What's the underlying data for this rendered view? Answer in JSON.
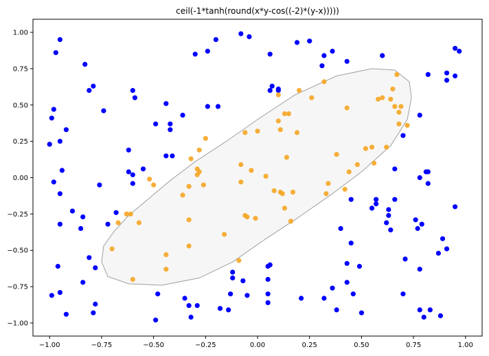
{
  "chart_data": {
    "type": "scatter",
    "title": "ceil(-1*tanh(round(x*y-cos((-2)*(y-x)))))",
    "xlabel": "",
    "ylabel": "",
    "xlim": [
      -1.08,
      1.08
    ],
    "ylim": [
      -1.09,
      1.09
    ],
    "x_ticks": [
      -1.0,
      -0.75,
      -0.5,
      -0.25,
      0.0,
      0.25,
      0.5,
      0.75,
      1.0
    ],
    "x_tick_labels": [
      "−1.00",
      "−0.75",
      "−0.50",
      "−0.25",
      "0.00",
      "0.25",
      "0.50",
      "0.75",
      "1.00"
    ],
    "y_ticks": [
      1.0,
      0.75,
      0.5,
      0.25,
      0.0,
      -0.25,
      -0.5,
      -0.75,
      -1.0
    ],
    "y_tick_labels": [
      "1.00",
      "0.75",
      "0.50",
      "0.25",
      "0.00",
      "−0.25",
      "−0.50",
      "−0.75",
      "−1.00"
    ],
    "grid": false,
    "colors": {
      "class_a": "#0000ff",
      "class_b": "#f5a623",
      "region_fill": "#d3d3d3",
      "region_stroke": "#a0a0a0"
    },
    "region": [
      [
        -0.74,
        -0.47
      ],
      [
        -0.69,
        -0.37
      ],
      [
        -0.62,
        -0.26
      ],
      [
        -0.52,
        -0.14
      ],
      [
        -0.42,
        -0.02
      ],
      [
        -0.3,
        0.11
      ],
      [
        -0.15,
        0.25
      ],
      [
        0.0,
        0.4
      ],
      [
        0.18,
        0.57
      ],
      [
        0.38,
        0.7
      ],
      [
        0.55,
        0.75
      ],
      [
        0.66,
        0.74
      ],
      [
        0.73,
        0.66
      ],
      [
        0.74,
        0.55
      ],
      [
        0.72,
        0.4
      ],
      [
        0.64,
        0.22
      ],
      [
        0.5,
        0.04
      ],
      [
        0.36,
        -0.11
      ],
      [
        0.2,
        -0.27
      ],
      [
        0.03,
        -0.43
      ],
      [
        -0.12,
        -0.58
      ],
      [
        -0.28,
        -0.69
      ],
      [
        -0.46,
        -0.74
      ],
      [
        -0.62,
        -0.73
      ],
      [
        -0.72,
        -0.68
      ],
      [
        -0.75,
        -0.58
      ]
    ],
    "series": [
      {
        "values": [
          [
            -0.95,
            0.95
          ],
          [
            -0.97,
            0.86
          ],
          [
            -0.83,
            0.78
          ],
          [
            -0.81,
            0.6
          ],
          [
            -0.79,
            0.63
          ],
          [
            -0.99,
            0.41
          ],
          [
            -0.98,
            0.47
          ],
          [
            -0.74,
            0.46
          ],
          [
            -0.95,
            0.25
          ],
          [
            -0.92,
            0.33
          ],
          [
            -1.0,
            0.23
          ],
          [
            -0.94,
            0.05
          ],
          [
            -0.98,
            -0.03
          ],
          [
            -0.95,
            -0.11
          ],
          [
            -0.76,
            -0.05
          ],
          [
            -0.89,
            -0.23
          ],
          [
            -0.84,
            -0.27
          ],
          [
            -0.95,
            -0.32
          ],
          [
            -0.85,
            -0.35
          ],
          [
            -0.81,
            -0.55
          ],
          [
            -0.96,
            -0.61
          ],
          [
            -0.84,
            -0.72
          ],
          [
            -0.78,
            -0.62
          ],
          [
            -0.95,
            -0.79
          ],
          [
            -0.99,
            -0.81
          ],
          [
            -0.78,
            -0.87
          ],
          [
            -0.92,
            -0.94
          ],
          [
            -0.79,
            -0.93
          ],
          [
            -0.72,
            -0.32
          ],
          [
            -0.68,
            -0.24
          ],
          [
            -0.6,
            0.6
          ],
          [
            -0.59,
            0.55
          ],
          [
            -0.44,
            0.51
          ],
          [
            -0.49,
            0.37
          ],
          [
            -0.42,
            0.37
          ],
          [
            -0.36,
            0.43
          ],
          [
            -0.42,
            0.33
          ],
          [
            -0.41,
            0.15
          ],
          [
            -0.44,
            0.15
          ],
          [
            -0.62,
            0.19
          ],
          [
            -0.62,
            0.04
          ],
          [
            -0.55,
            0.06
          ],
          [
            -0.6,
            0.02
          ],
          [
            -0.6,
            -0.04
          ],
          [
            -0.3,
            0.85
          ],
          [
            -0.24,
            0.87
          ],
          [
            -0.2,
            0.95
          ],
          [
            -0.24,
            0.49
          ],
          [
            -0.19,
            0.49
          ],
          [
            -0.08,
            0.99
          ],
          [
            -0.04,
            0.97
          ],
          [
            0.06,
            0.85
          ],
          [
            0.07,
            0.63
          ],
          [
            0.06,
            0.6
          ],
          [
            0.1,
            0.61
          ],
          [
            0.1,
            0.6
          ],
          [
            0.19,
            0.93
          ],
          [
            0.25,
            0.94
          ],
          [
            0.31,
            0.77
          ],
          [
            0.32,
            0.84
          ],
          [
            0.36,
            0.87
          ],
          [
            0.43,
            0.8
          ],
          [
            0.6,
            0.84
          ],
          [
            0.82,
            0.71
          ],
          [
            0.91,
            0.72
          ],
          [
            0.91,
            0.67
          ],
          [
            0.95,
            0.7
          ],
          [
            0.95,
            0.89
          ],
          [
            0.97,
            0.87
          ],
          [
            0.78,
            0.43
          ],
          [
            0.7,
            0.29
          ],
          [
            0.81,
            0.04
          ],
          [
            0.82,
            0.04
          ],
          [
            0.82,
            -0.04
          ],
          [
            0.78,
            0.0
          ],
          [
            0.66,
            0.06
          ],
          [
            0.57,
            -0.15
          ],
          [
            0.57,
            -0.18
          ],
          [
            0.55,
            -0.21
          ],
          [
            0.63,
            -0.22
          ],
          [
            0.63,
            -0.26
          ],
          [
            0.62,
            -0.31
          ],
          [
            0.64,
            -0.36
          ],
          [
            0.66,
            -0.15
          ],
          [
            0.76,
            -0.29
          ],
          [
            0.79,
            -0.32
          ],
          [
            0.77,
            -0.35
          ],
          [
            0.89,
            -0.42
          ],
          [
            0.91,
            -0.49
          ],
          [
            0.87,
            -0.52
          ],
          [
            0.95,
            -0.2
          ],
          [
            0.71,
            -0.56
          ],
          [
            0.78,
            -0.63
          ],
          [
            0.7,
            -0.8
          ],
          [
            0.78,
            -0.91
          ],
          [
            0.8,
            -0.96
          ],
          [
            0.83,
            -0.91
          ],
          [
            0.88,
            -0.95
          ],
          [
            0.45,
            -0.15
          ],
          [
            0.4,
            -0.35
          ],
          [
            0.45,
            -0.45
          ],
          [
            0.43,
            -0.59
          ],
          [
            0.49,
            -0.61
          ],
          [
            0.43,
            -0.72
          ],
          [
            0.36,
            -0.76
          ],
          [
            0.32,
            -0.83
          ],
          [
            0.38,
            -0.91
          ],
          [
            0.46,
            -0.8
          ],
          [
            0.5,
            -0.93
          ],
          [
            0.21,
            -0.83
          ],
          [
            0.05,
            -0.61
          ],
          [
            0.06,
            -0.6
          ],
          [
            0.05,
            -0.7
          ],
          [
            0.05,
            -0.8
          ],
          [
            0.05,
            -0.86
          ],
          [
            -0.12,
            -0.65
          ],
          [
            -0.12,
            -0.69
          ],
          [
            -0.07,
            -0.71
          ],
          [
            -0.05,
            -0.81
          ],
          [
            -0.13,
            -0.8
          ],
          [
            -0.14,
            -0.91
          ],
          [
            -0.18,
            -0.9
          ],
          [
            -0.33,
            -0.88
          ],
          [
            -0.35,
            -0.83
          ],
          [
            -0.29,
            -0.88
          ],
          [
            -0.32,
            -0.96
          ],
          [
            -0.48,
            -0.8
          ],
          [
            -0.49,
            -0.98
          ]
        ]
      },
      {
        "values": [
          [
            -0.7,
            -0.49
          ],
          [
            -0.67,
            -0.31
          ],
          [
            -0.63,
            -0.25
          ],
          [
            -0.61,
            -0.25
          ],
          [
            -0.57,
            -0.31
          ],
          [
            -0.52,
            -0.01
          ],
          [
            -0.5,
            -0.05
          ],
          [
            -0.44,
            -0.53
          ],
          [
            -0.44,
            -0.63
          ],
          [
            -0.6,
            -0.7
          ],
          [
            -0.36,
            -0.12
          ],
          [
            -0.33,
            -0.06
          ],
          [
            -0.32,
            0.13
          ],
          [
            -0.28,
            0.19
          ],
          [
            -0.29,
            0.06
          ],
          [
            -0.28,
            0.04
          ],
          [
            -0.29,
            0.02
          ],
          [
            -0.26,
            -0.05
          ],
          [
            -0.25,
            0.27
          ],
          [
            -0.33,
            -0.29
          ],
          [
            -0.33,
            -0.47
          ],
          [
            -0.16,
            -0.39
          ],
          [
            -0.08,
            -0.03
          ],
          [
            -0.08,
            0.09
          ],
          [
            -0.03,
            0.05
          ],
          [
            -0.06,
            0.31
          ],
          [
            0.0,
            0.32
          ],
          [
            -0.06,
            -0.26
          ],
          [
            -0.05,
            -0.27
          ],
          [
            -0.01,
            -0.28
          ],
          [
            -0.09,
            -0.57
          ],
          [
            0.04,
            0.01
          ],
          [
            0.08,
            -0.09
          ],
          [
            0.1,
            0.39
          ],
          [
            0.11,
            0.33
          ],
          [
            0.1,
            0.57
          ],
          [
            0.11,
            -0.1
          ],
          [
            0.12,
            -0.11
          ],
          [
            0.13,
            -0.21
          ],
          [
            0.14,
            0.14
          ],
          [
            0.13,
            0.44
          ],
          [
            0.15,
            0.44
          ],
          [
            0.16,
            -0.3
          ],
          [
            0.17,
            -0.1
          ],
          [
            0.19,
            0.31
          ],
          [
            0.2,
            0.6
          ],
          [
            0.26,
            0.55
          ],
          [
            0.32,
            0.66
          ],
          [
            0.33,
            -0.11
          ],
          [
            0.34,
            -0.04
          ],
          [
            0.38,
            0.16
          ],
          [
            0.43,
            0.48
          ],
          [
            0.42,
            -0.08
          ],
          [
            0.44,
            0.04
          ],
          [
            0.48,
            0.09
          ],
          [
            0.52,
            0.2
          ],
          [
            0.55,
            0.21
          ],
          [
            0.56,
            0.1
          ],
          [
            0.58,
            0.54
          ],
          [
            0.6,
            0.55
          ],
          [
            0.62,
            0.21
          ],
          [
            0.64,
            0.54
          ],
          [
            0.65,
            0.61
          ],
          [
            0.66,
            0.49
          ],
          [
            0.67,
            0.71
          ],
          [
            0.68,
            0.37
          ],
          [
            0.68,
            0.45
          ],
          [
            0.69,
            0.49
          ],
          [
            0.72,
            0.36
          ]
        ]
      }
    ]
  }
}
